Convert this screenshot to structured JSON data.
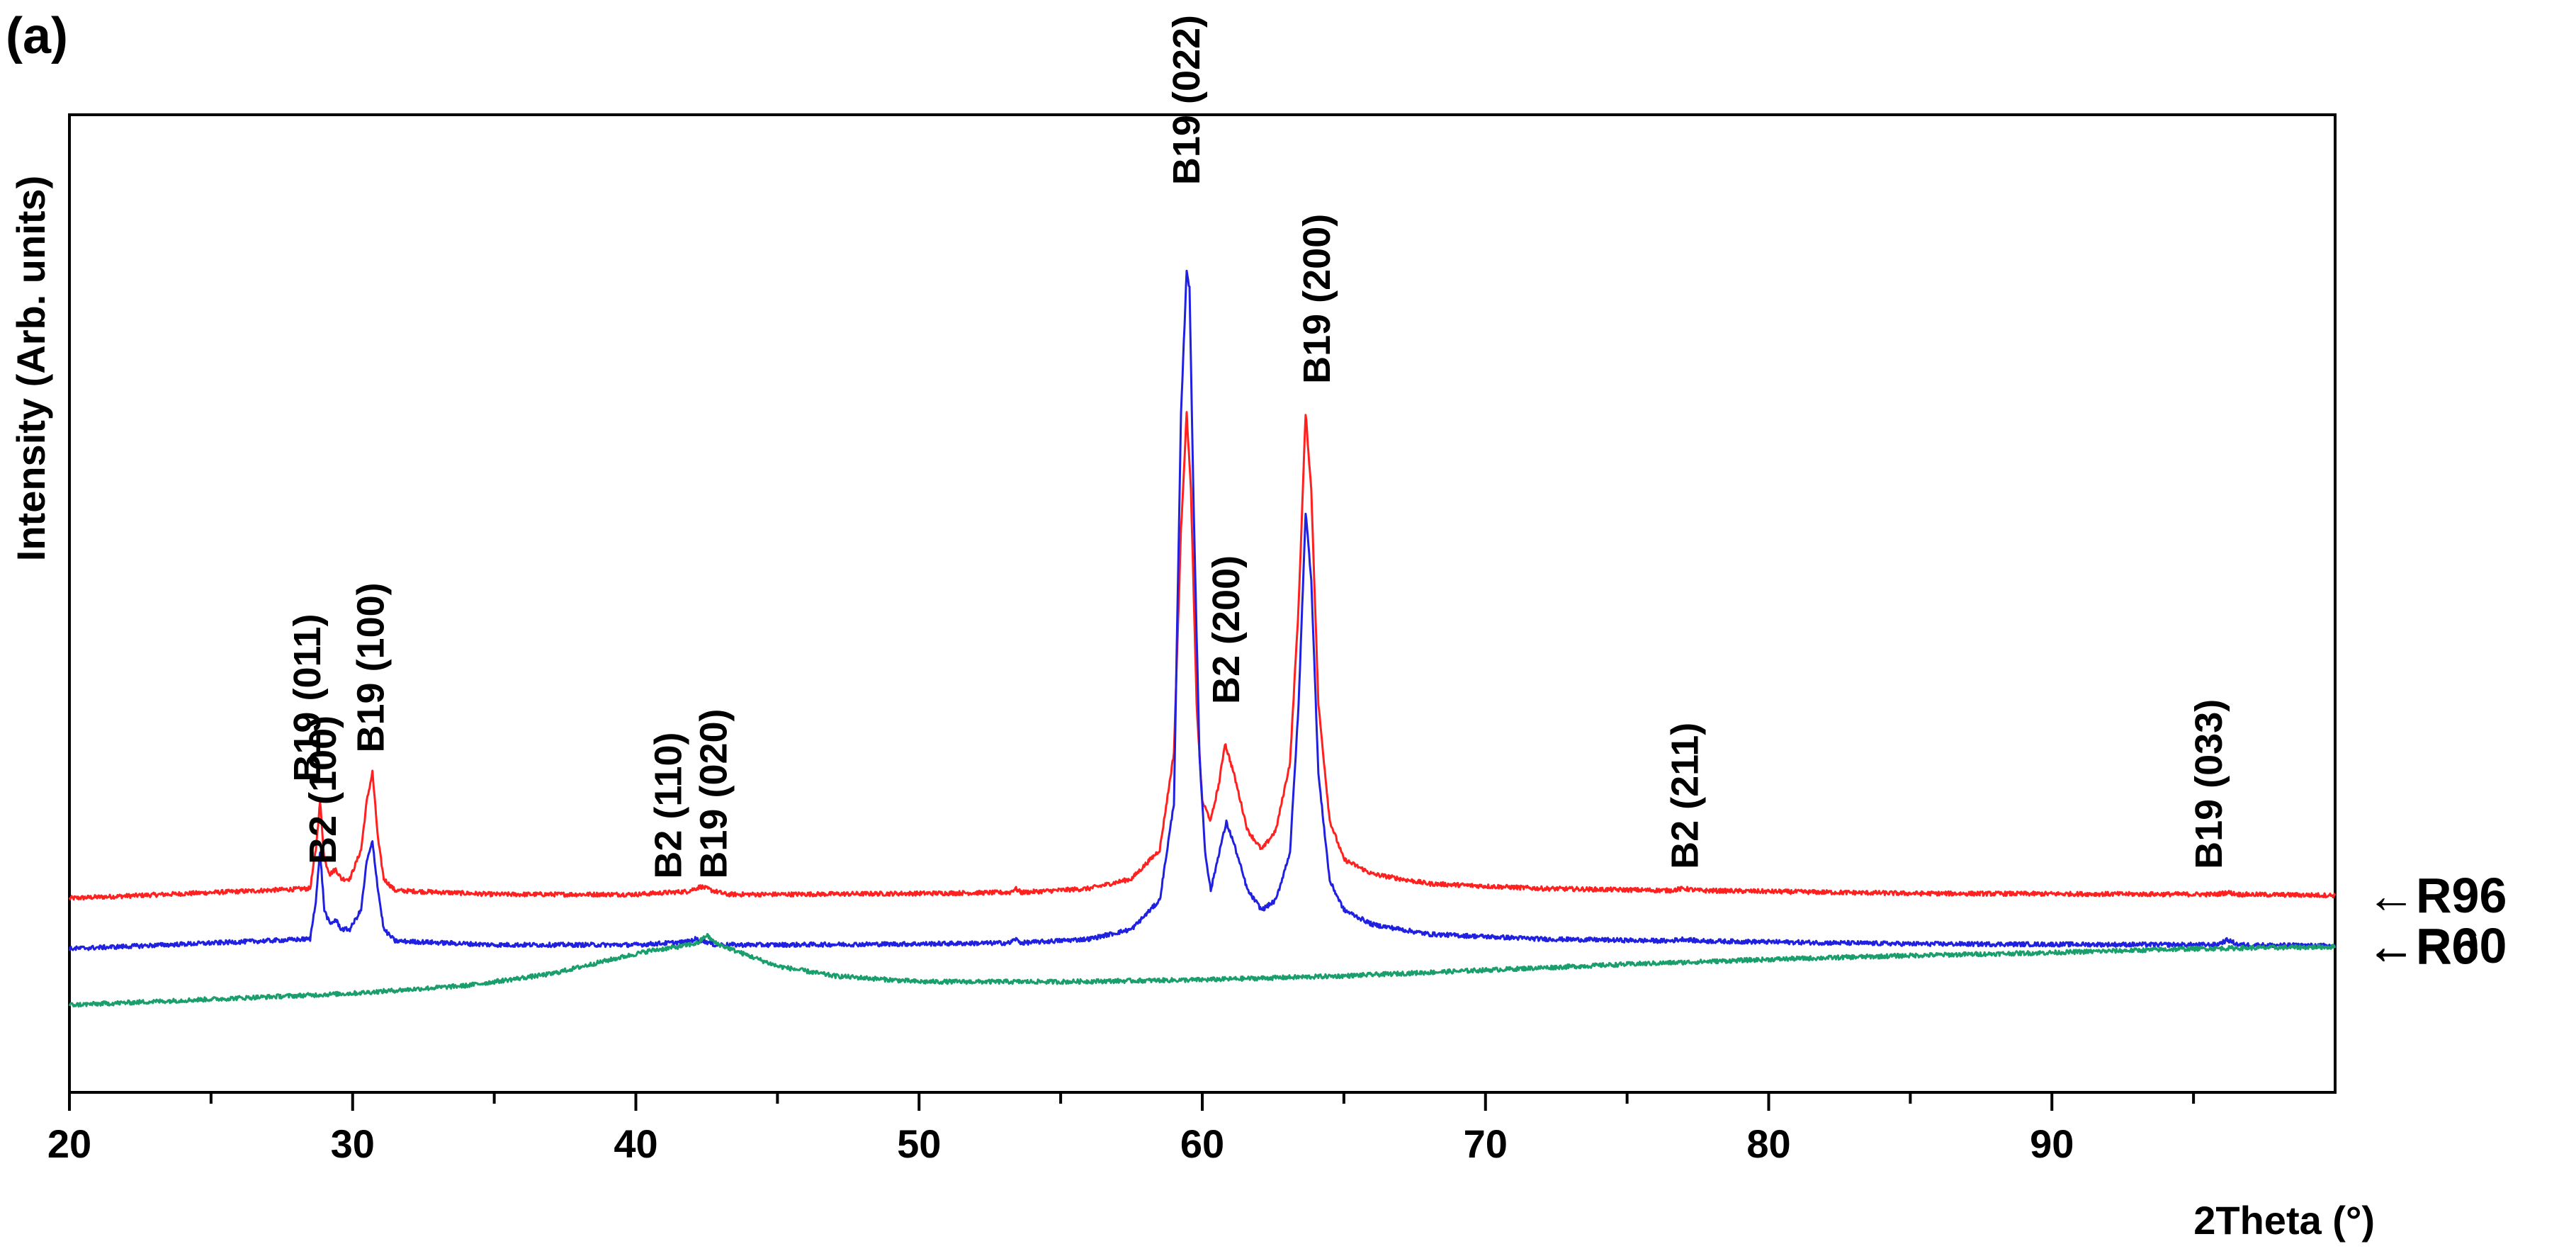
{
  "panel_label": "(a)",
  "chart_data": {
    "type": "line",
    "title": "",
    "xlabel": "2Theta (°)",
    "ylabel": "Intensity (Arb. units)",
    "xlim": [
      20,
      100
    ],
    "ylim": [
      -0.15,
      1.0
    ],
    "x_ticks": [
      20,
      30,
      40,
      50,
      60,
      70,
      80,
      90
    ],
    "x_tick_labels": [
      "20",
      "30",
      "40",
      "50",
      "60",
      "70",
      "80",
      "90"
    ],
    "grid": false,
    "series": [
      {
        "name": "R96",
        "label": "←R96",
        "color": "#ff2020",
        "baseline": 0.0,
        "x": [
          20,
          28.5,
          28.7,
          28.85,
          29.0,
          29.2,
          29.4,
          29.6,
          29.9,
          30.3,
          30.5,
          30.7,
          30.9,
          31.1,
          31.5,
          35,
          40,
          41.8,
          42.3,
          42.7,
          43.2,
          45,
          50,
          53.2,
          53.4,
          53.6,
          56,
          57.5,
          58.5,
          59.0,
          59.25,
          59.45,
          59.6,
          59.8,
          60.0,
          60.3,
          60.6,
          60.8,
          61.1,
          61.6,
          62.1,
          62.6,
          63.1,
          63.4,
          63.65,
          63.85,
          64.1,
          64.5,
          65.0,
          66,
          68,
          72,
          76.5,
          77.0,
          77.5,
          85,
          95.8,
          96.2,
          96.6,
          100
        ],
        "values": [
          0.0,
          0.01,
          0.05,
          0.1,
          0.04,
          0.025,
          0.03,
          0.02,
          0.02,
          0.05,
          0.1,
          0.13,
          0.06,
          0.02,
          0.008,
          0.004,
          0.004,
          0.007,
          0.012,
          0.008,
          0.004,
          0.004,
          0.005,
          0.006,
          0.01,
          0.006,
          0.01,
          0.02,
          0.05,
          0.15,
          0.38,
          0.5,
          0.42,
          0.2,
          0.1,
          0.08,
          0.12,
          0.16,
          0.13,
          0.07,
          0.05,
          0.07,
          0.14,
          0.3,
          0.5,
          0.42,
          0.2,
          0.08,
          0.04,
          0.025,
          0.015,
          0.01,
          0.008,
          0.01,
          0.008,
          0.005,
          0.004,
          0.006,
          0.004,
          0.003
        ]
      },
      {
        "name": "R60",
        "label": "←R60",
        "color": "#2020e0",
        "baseline": -0.052,
        "x": [
          20,
          28.5,
          28.7,
          28.85,
          29.0,
          29.2,
          29.4,
          29.6,
          29.9,
          30.3,
          30.5,
          30.7,
          30.9,
          31.1,
          31.5,
          35,
          40,
          41.8,
          42.1,
          42.4,
          42.8,
          45,
          50,
          53.2,
          53.4,
          53.6,
          56,
          57.5,
          58.5,
          59.0,
          59.25,
          59.45,
          59.55,
          59.7,
          59.9,
          60.1,
          60.3,
          60.6,
          60.85,
          61.1,
          61.6,
          62.1,
          62.6,
          63.1,
          63.4,
          63.65,
          63.85,
          64.1,
          64.5,
          65.0,
          66,
          68,
          72,
          76.5,
          77.0,
          77.5,
          85,
          95.8,
          96.2,
          96.6,
          100
        ],
        "values": [
          0.0,
          0.01,
          0.05,
          0.1,
          0.04,
          0.025,
          0.03,
          0.02,
          0.02,
          0.04,
          0.09,
          0.11,
          0.06,
          0.02,
          0.008,
          0.004,
          0.004,
          0.007,
          0.01,
          0.008,
          0.004,
          0.004,
          0.005,
          0.006,
          0.01,
          0.006,
          0.01,
          0.02,
          0.05,
          0.15,
          0.55,
          0.7,
          0.68,
          0.45,
          0.2,
          0.1,
          0.06,
          0.1,
          0.13,
          0.11,
          0.06,
          0.04,
          0.05,
          0.1,
          0.25,
          0.45,
          0.38,
          0.18,
          0.07,
          0.04,
          0.025,
          0.015,
          0.01,
          0.008,
          0.01,
          0.008,
          0.005,
          0.004,
          0.009,
          0.004,
          0.003
        ]
      },
      {
        "name": "R0",
        "label": "←R0",
        "color": "#1a9e6c",
        "baseline": -0.11,
        "x": [
          20,
          25,
          30,
          34,
          37,
          39,
          40.5,
          41.5,
          42.2,
          42.5,
          42.8,
          43.5,
          45,
          47,
          50,
          55,
          60,
          65,
          70,
          75,
          80,
          85,
          90,
          95,
          100
        ],
        "values": [
          0.0,
          0.006,
          0.012,
          0.02,
          0.032,
          0.046,
          0.056,
          0.06,
          0.064,
          0.072,
          0.064,
          0.056,
          0.04,
          0.03,
          0.024,
          0.024,
          0.026,
          0.03,
          0.036,
          0.042,
          0.047,
          0.051,
          0.054,
          0.058,
          0.06
        ]
      }
    ],
    "annotations": [
      {
        "text": "B19 (011)",
        "x": 28.85,
        "y": 0.12
      },
      {
        "text": "B2 (100)",
        "x": 29.4,
        "y": 0.035
      },
      {
        "text": "B19 (100)",
        "x": 31.1,
        "y": 0.15
      },
      {
        "text": "B2 (110)",
        "x": 41.6,
        "y": 0.02
      },
      {
        "text": "B19 (020)",
        "x": 43.2,
        "y": 0.02
      },
      {
        "text": "B19 (022)",
        "x": 59.9,
        "y": 0.735
      },
      {
        "text": "B2 (200)",
        "x": 61.3,
        "y": 0.2
      },
      {
        "text": "B19 (200)",
        "x": 64.5,
        "y": 0.53
      },
      {
        "text": "B2 (211)",
        "x": 77.5,
        "y": 0.03
      },
      {
        "text": "B19 (033)",
        "x": 96.0,
        "y": 0.03
      }
    ]
  }
}
